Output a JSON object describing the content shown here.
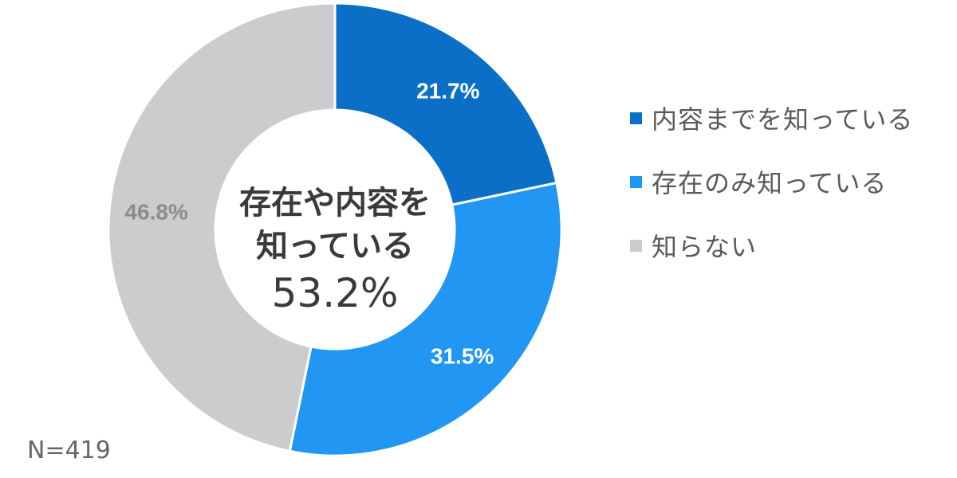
{
  "chart_data": {
    "type": "pie",
    "subtype": "donut",
    "title": "",
    "categories": [
      "内容までを知っている",
      "存在のみ知っている",
      "知らない"
    ],
    "values": [
      21.7,
      31.5,
      46.8
    ],
    "value_labels": [
      "21.7%",
      "31.5%",
      "46.8%"
    ],
    "colors": [
      "#0B6FC8",
      "#2196F3",
      "#CCCCCF"
    ],
    "label_colors": [
      "#FFFFFF",
      "#FFFFFF",
      "#8C8C8C"
    ],
    "center_label": {
      "line1": "存在や内容を",
      "line2": "知っている",
      "value": "53.2%"
    },
    "legend_position": "right",
    "sample_size": "N=419"
  },
  "legend": {
    "items": [
      {
        "label": "内容までを知っている",
        "color": "#0B6FC8"
      },
      {
        "label": "存在のみ知っている",
        "color": "#2196F3"
      },
      {
        "label": "知らない",
        "color": "#CCCCCF"
      }
    ]
  },
  "footer": {
    "n_label": "N=419"
  }
}
